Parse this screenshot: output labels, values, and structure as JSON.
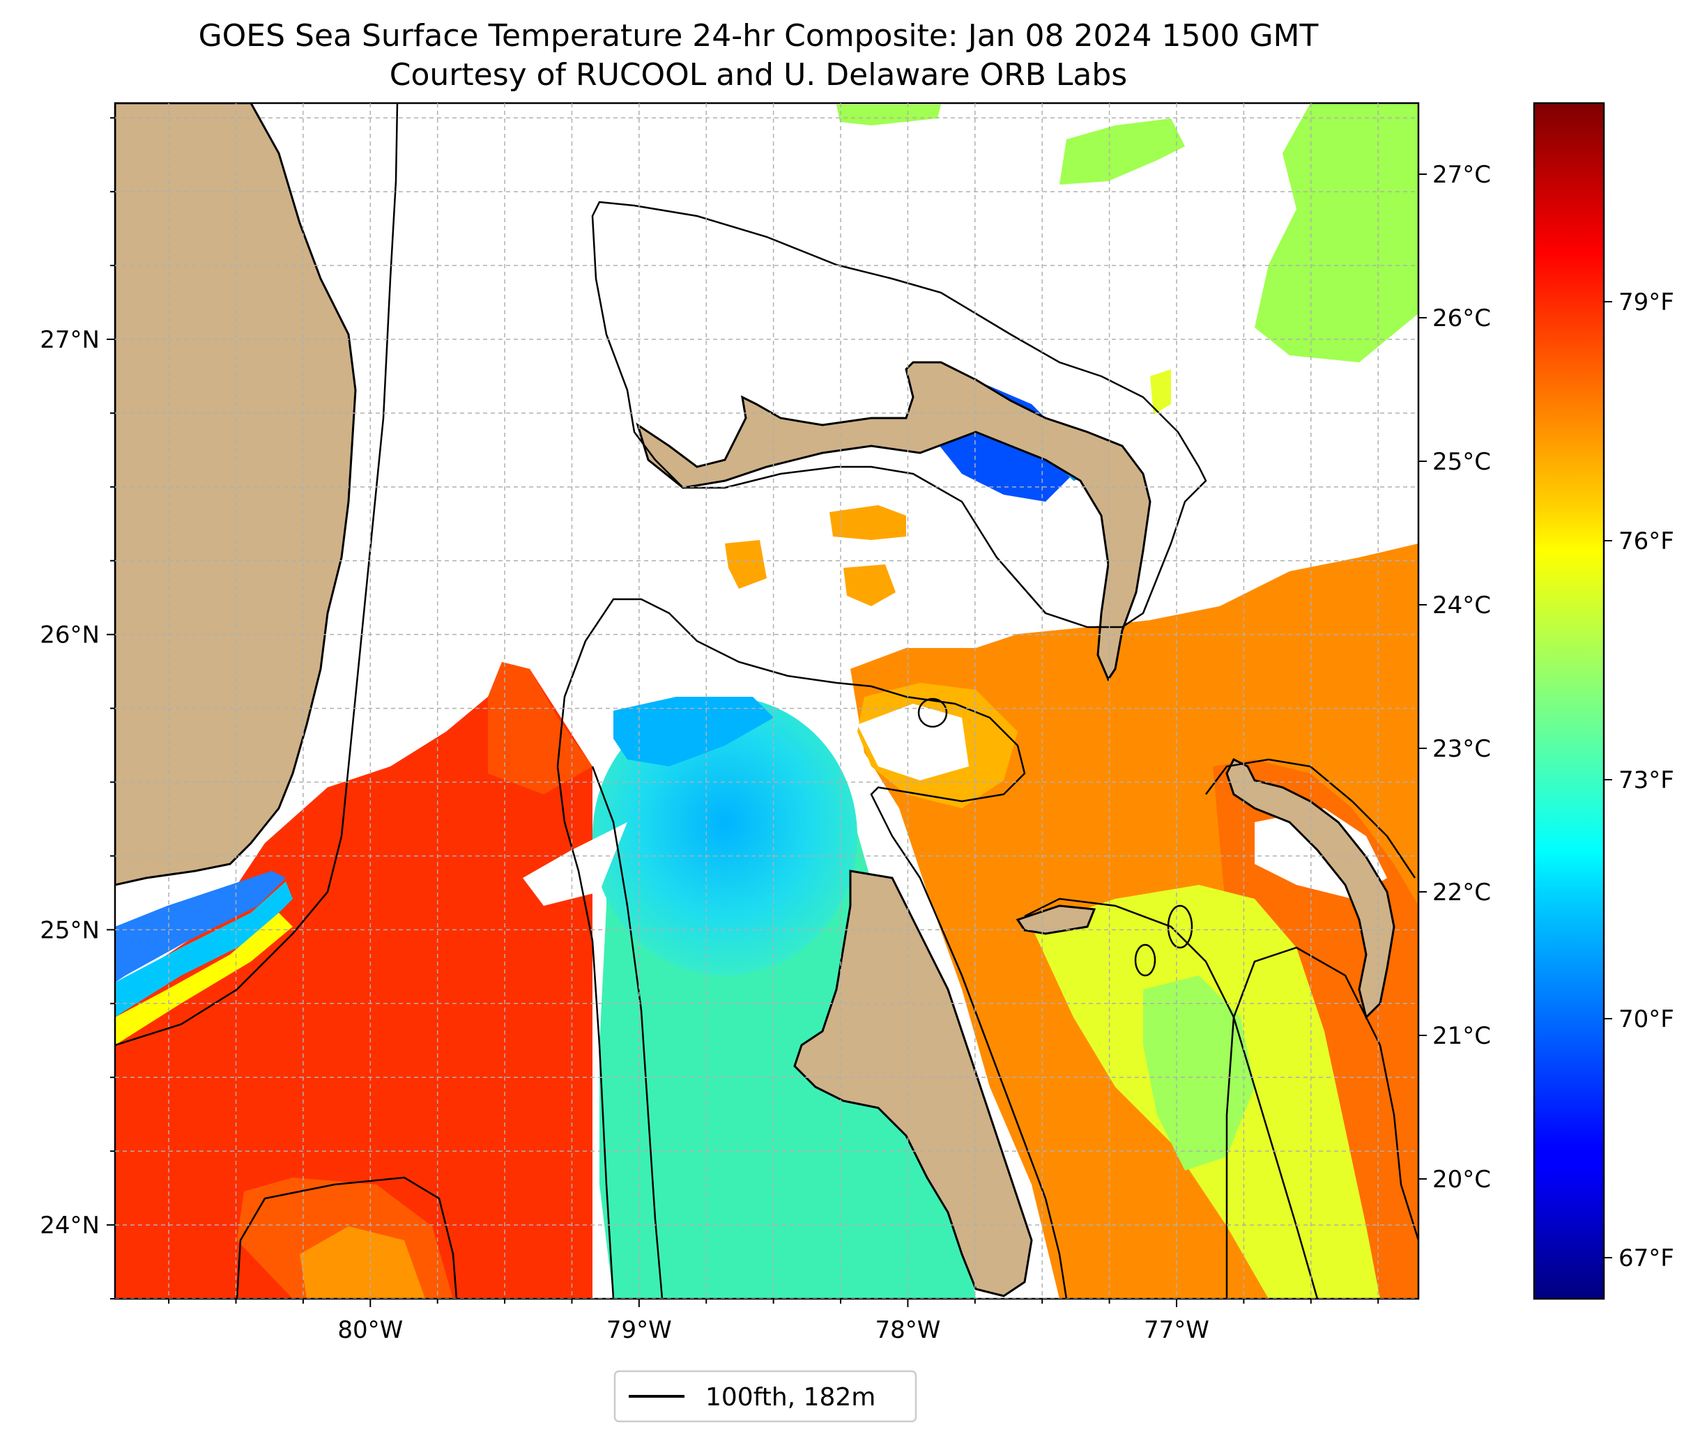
{
  "title": {
    "line1": "GOES Sea Surface Temperature 24-hr Composite: Jan 08 2024 1500 GMT",
    "line2": "Courtesy of RUCOOL and U. Delaware ORB Labs"
  },
  "map": {
    "lon_range": [
      -80.95,
      -76.1
    ],
    "lat_range": [
      23.75,
      27.8
    ],
    "x_ticks": [
      {
        "value": -80,
        "label": "80°W"
      },
      {
        "value": -79,
        "label": "79°W"
      },
      {
        "value": -78,
        "label": "78°W"
      },
      {
        "value": -77,
        "label": "77°W"
      }
    ],
    "y_ticks": [
      {
        "value": 24,
        "label": "24°N"
      },
      {
        "value": 25,
        "label": "25°N"
      },
      {
        "value": 26,
        "label": "26°N"
      },
      {
        "value": 27,
        "label": "27°N"
      }
    ],
    "grid": true,
    "colors": {
      "land": "#cfb287",
      "contour": "#000000",
      "grid": "#b0b0b0"
    }
  },
  "legend": {
    "label": "100fth, 182m",
    "placement": "bottom-center"
  },
  "colorbar": {
    "colormap": "jet",
    "celsius_ticks": [
      "27°C",
      "26°C",
      "25°C",
      "24°C",
      "23°C",
      "22°C",
      "21°C",
      "20°C"
    ],
    "fahrenheit_ticks": [
      "79°F",
      "76°F",
      "73°F",
      "70°F",
      "67°F"
    ]
  }
}
